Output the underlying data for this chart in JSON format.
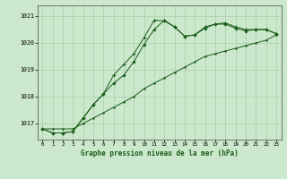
{
  "xlabel": "Graphe pression niveau de la mer (hPa)",
  "ylim": [
    1016.4,
    1021.4
  ],
  "xlim": [
    -0.5,
    23.5
  ],
  "xticks": [
    0,
    1,
    2,
    3,
    4,
    5,
    6,
    7,
    8,
    9,
    10,
    11,
    12,
    13,
    14,
    15,
    16,
    17,
    18,
    19,
    20,
    21,
    22,
    23
  ],
  "yticks": [
    1017,
    1018,
    1019,
    1020,
    1021
  ],
  "background_color": "#cce8cc",
  "grid_color": "#aaccaa",
  "line_color": "#1a5c1a",
  "line1_x": [
    0,
    1,
    2,
    3,
    4,
    5,
    6,
    7,
    8,
    9,
    10,
    11,
    12,
    13,
    14,
    15,
    16,
    17,
    18,
    19,
    20,
    21,
    22,
    23
  ],
  "line1_y": [
    1016.8,
    1016.8,
    1016.8,
    1016.8,
    1017.0,
    1017.2,
    1017.4,
    1017.6,
    1017.8,
    1018.0,
    1018.3,
    1018.5,
    1018.7,
    1018.9,
    1019.1,
    1019.3,
    1019.5,
    1019.6,
    1019.7,
    1019.8,
    1019.9,
    1020.0,
    1020.1,
    1020.3
  ],
  "line2_x": [
    0,
    1,
    2,
    3,
    4,
    5,
    6,
    7,
    8,
    9,
    10,
    11,
    12,
    13,
    14,
    15,
    16,
    17,
    18,
    19,
    20,
    21,
    22,
    23
  ],
  "line2_y": [
    1016.8,
    1016.65,
    1016.65,
    1016.7,
    1017.2,
    1017.7,
    1018.1,
    1018.5,
    1018.8,
    1019.3,
    1019.95,
    1020.5,
    1020.85,
    1020.6,
    1020.25,
    1020.3,
    1020.55,
    1020.7,
    1020.7,
    1020.55,
    1020.45,
    1020.5,
    1020.5,
    1020.35
  ],
  "line3_x": [
    0,
    1,
    2,
    3,
    4,
    5,
    6,
    7,
    8,
    9,
    10,
    11,
    12,
    13,
    14,
    15,
    16,
    17,
    18,
    19,
    20,
    21,
    22,
    23
  ],
  "line3_y": [
    1016.8,
    1016.65,
    1016.65,
    1016.7,
    1017.2,
    1017.7,
    1018.1,
    1018.8,
    1019.2,
    1019.6,
    1020.2,
    1020.85,
    1020.82,
    1020.6,
    1020.25,
    1020.3,
    1020.6,
    1020.7,
    1020.75,
    1020.6,
    1020.5,
    1020.5,
    1020.5,
    1020.35
  ]
}
